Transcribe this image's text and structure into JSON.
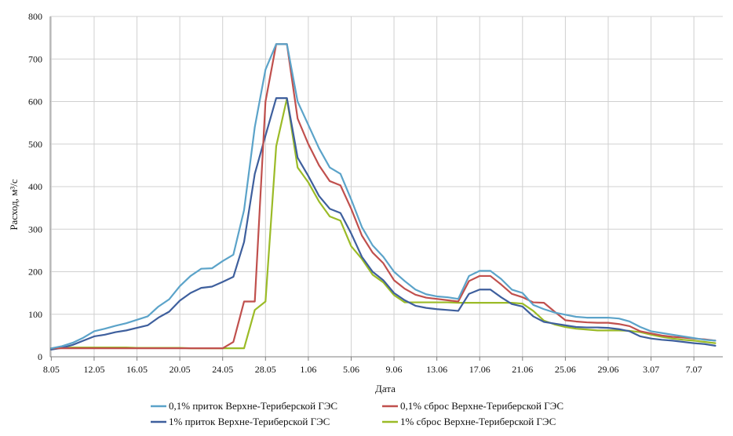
{
  "chart_data": {
    "type": "line",
    "title": "",
    "xlabel": "Дата",
    "ylabel": "Расход, м³/с",
    "ylim": [
      0,
      800
    ],
    "yticks": [
      0,
      100,
      200,
      300,
      400,
      500,
      600,
      700,
      800
    ],
    "x_start": "8.05",
    "x_step_days": 1,
    "xticks": [
      {
        "day": 0,
        "label": "8.05"
      },
      {
        "day": 4,
        "label": "12.05"
      },
      {
        "day": 8,
        "label": "16.05"
      },
      {
        "day": 12,
        "label": "20.05"
      },
      {
        "day": 16,
        "label": "24.05"
      },
      {
        "day": 20,
        "label": "28.05"
      },
      {
        "day": 24,
        "label": "1.06"
      },
      {
        "day": 28,
        "label": "5.06"
      },
      {
        "day": 32,
        "label": "9.06"
      },
      {
        "day": 36,
        "label": "13.06"
      },
      {
        "day": 40,
        "label": "17.06"
      },
      {
        "day": 44,
        "label": "21.06"
      },
      {
        "day": 48,
        "label": "25.06"
      },
      {
        "day": 52,
        "label": "29.06"
      },
      {
        "day": 56,
        "label": "3.07"
      },
      {
        "day": 60,
        "label": "7.07"
      }
    ],
    "grid": true,
    "legend_position": "bottom",
    "series": [
      {
        "name": "0,1% приток Верхне-Териберской ГЭС",
        "color": "#5ba3c9",
        "x": [
          0,
          1,
          2,
          3,
          4,
          5,
          6,
          7,
          8,
          9,
          10,
          11,
          12,
          13,
          14,
          15,
          16,
          17,
          18,
          19,
          20,
          21,
          22,
          23,
          24,
          25,
          26,
          27,
          28,
          29,
          30,
          31,
          32,
          33,
          34,
          35,
          36,
          37,
          38,
          39,
          40,
          41,
          42,
          43,
          44,
          45,
          46,
          47,
          48,
          49,
          50,
          51,
          52,
          53,
          54,
          55,
          56,
          57,
          58,
          59,
          60,
          61,
          62
        ],
        "values": [
          20,
          25,
          33,
          45,
          60,
          66,
          73,
          79,
          87,
          95,
          118,
          135,
          166,
          190,
          207,
          208,
          225,
          240,
          345,
          540,
          675,
          735,
          735,
          600,
          545,
          490,
          445,
          430,
          370,
          305,
          262,
          235,
          200,
          178,
          158,
          147,
          142,
          140,
          136,
          190,
          202,
          202,
          183,
          158,
          150,
          122,
          112,
          104,
          99,
          94,
          92,
          92,
          92,
          90,
          83,
          70,
          60,
          56,
          52,
          48,
          44,
          40,
          38
        ]
      },
      {
        "name": "0,1% сброс Верхне-Териберской ГЭС",
        "color": "#c0504d",
        "x": [
          0,
          1,
          2,
          3,
          4,
          5,
          6,
          7,
          8,
          9,
          10,
          11,
          12,
          13,
          14,
          15,
          16,
          17,
          18,
          19,
          20,
          21,
          22,
          23,
          24,
          25,
          26,
          27,
          28,
          29,
          30,
          31,
          32,
          33,
          34,
          35,
          36,
          37,
          38,
          39,
          40,
          41,
          42,
          43,
          44,
          45,
          46,
          47,
          48,
          49,
          50,
          51,
          52,
          53,
          54,
          55,
          56,
          57,
          58,
          59,
          60,
          61,
          62
        ],
        "values": [
          20,
          null,
          null,
          null,
          null,
          null,
          null,
          null,
          null,
          null,
          null,
          null,
          null,
          null,
          null,
          null,
          20,
          35,
          130,
          130,
          600,
          735,
          735,
          560,
          500,
          450,
          413,
          403,
          348,
          285,
          245,
          220,
          180,
          160,
          146,
          139,
          136,
          133,
          130,
          178,
          190,
          190,
          170,
          148,
          140,
          128,
          127,
          106,
          86,
          83,
          81,
          80,
          80,
          77,
          72,
          60,
          55,
          50,
          47,
          45,
          43,
          41,
          38
        ]
      },
      {
        "name": "1% приток Верхне-Териберской ГЭС",
        "color": "#3e5f9d",
        "x": [
          0,
          1,
          2,
          3,
          4,
          5,
          6,
          7,
          8,
          9,
          10,
          11,
          12,
          13,
          14,
          15,
          16,
          17,
          18,
          19,
          20,
          21,
          22,
          23,
          24,
          25,
          26,
          27,
          28,
          29,
          30,
          31,
          32,
          33,
          34,
          35,
          36,
          37,
          38,
          39,
          40,
          41,
          42,
          43,
          44,
          45,
          46,
          47,
          48,
          49,
          50,
          51,
          52,
          53,
          54,
          55,
          56,
          57,
          58,
          59,
          60,
          61,
          62
        ],
        "values": [
          17,
          21,
          28,
          38,
          48,
          52,
          58,
          62,
          68,
          74,
          92,
          106,
          132,
          150,
          162,
          165,
          176,
          188,
          270,
          430,
          520,
          608,
          608,
          468,
          425,
          378,
          348,
          338,
          290,
          235,
          200,
          180,
          150,
          133,
          120,
          115,
          112,
          110,
          108,
          148,
          158,
          158,
          140,
          124,
          118,
          95,
          82,
          78,
          74,
          70,
          69,
          69,
          68,
          65,
          60,
          48,
          43,
          40,
          38,
          35,
          32,
          30,
          26
        ]
      },
      {
        "name": "1% сброс Верхне-Териберской ГЭС",
        "color": "#9bbb27",
        "x": [
          0,
          1,
          2,
          3,
          4,
          5,
          6,
          7,
          8,
          9,
          10,
          11,
          12,
          13,
          14,
          15,
          16,
          17,
          18,
          19,
          20,
          21,
          22,
          23,
          24,
          25,
          26,
          27,
          28,
          29,
          30,
          31,
          32,
          33,
          34,
          35,
          36,
          37,
          38,
          39,
          40,
          41,
          42,
          43,
          44,
          45,
          46,
          47,
          48,
          49,
          50,
          51,
          52,
          53,
          54,
          55,
          56,
          57,
          58,
          59,
          60,
          61,
          62
        ],
        "values": [
          20,
          21,
          22,
          22,
          22,
          22,
          22,
          22,
          21,
          21,
          21,
          21,
          21,
          20,
          20,
          20,
          20,
          20,
          20,
          110,
          130,
          495,
          607,
          445,
          410,
          365,
          330,
          320,
          260,
          230,
          193,
          175,
          145,
          128,
          128,
          128,
          128,
          128,
          127,
          127,
          127,
          127,
          127,
          127,
          125,
          108,
          85,
          76,
          70,
          66,
          64,
          62,
          62,
          62,
          61,
          58,
          52,
          47,
          43,
          40,
          38,
          35,
          32
        ]
      }
    ]
  }
}
